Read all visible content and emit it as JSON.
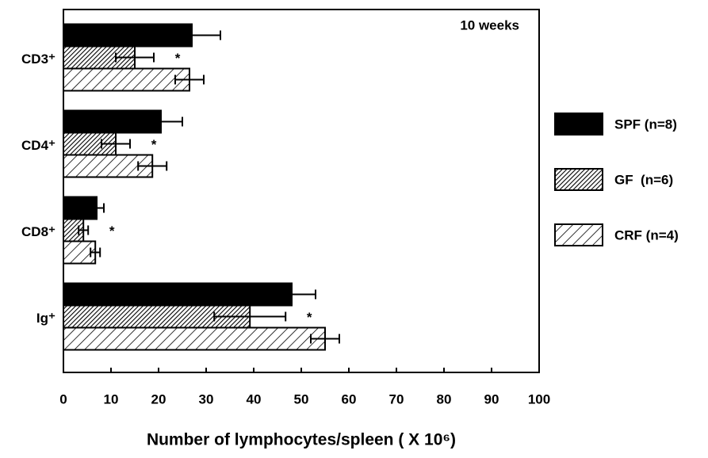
{
  "chart_data": {
    "type": "hbar",
    "annotation": "10 weeks",
    "xlabel": "Number of lymphocytes/spleen ( X 10⁶)",
    "categories": [
      "CD3⁺",
      "CD4⁺",
      "CD8⁺",
      "Ig⁺"
    ],
    "series": [
      {
        "name": "SPF (n=8)",
        "color": "#000000",
        "pattern": "solid",
        "values": [
          27,
          20.5,
          7,
          48
        ],
        "errors": [
          6,
          4.5,
          1.5,
          5
        ]
      },
      {
        "name": "GF  (n=6)",
        "color": "#000000",
        "pattern": "dense-hatch",
        "values": [
          15,
          11,
          4.2,
          39.2
        ],
        "errors": [
          4,
          3,
          1,
          7.5
        ]
      },
      {
        "name": "CRF (n=4)",
        "color": "#000000",
        "pattern": "hatch",
        "values": [
          26.5,
          18.7,
          6.7,
          55
        ],
        "errors": [
          3,
          3,
          1,
          3
        ]
      }
    ],
    "significance": [
      "*",
      "*",
      "*",
      "*"
    ],
    "xlim": [
      0,
      100
    ],
    "xticks": [
      0,
      10,
      20,
      30,
      40,
      50,
      60,
      70,
      80,
      90,
      100
    ],
    "legend": "right"
  }
}
